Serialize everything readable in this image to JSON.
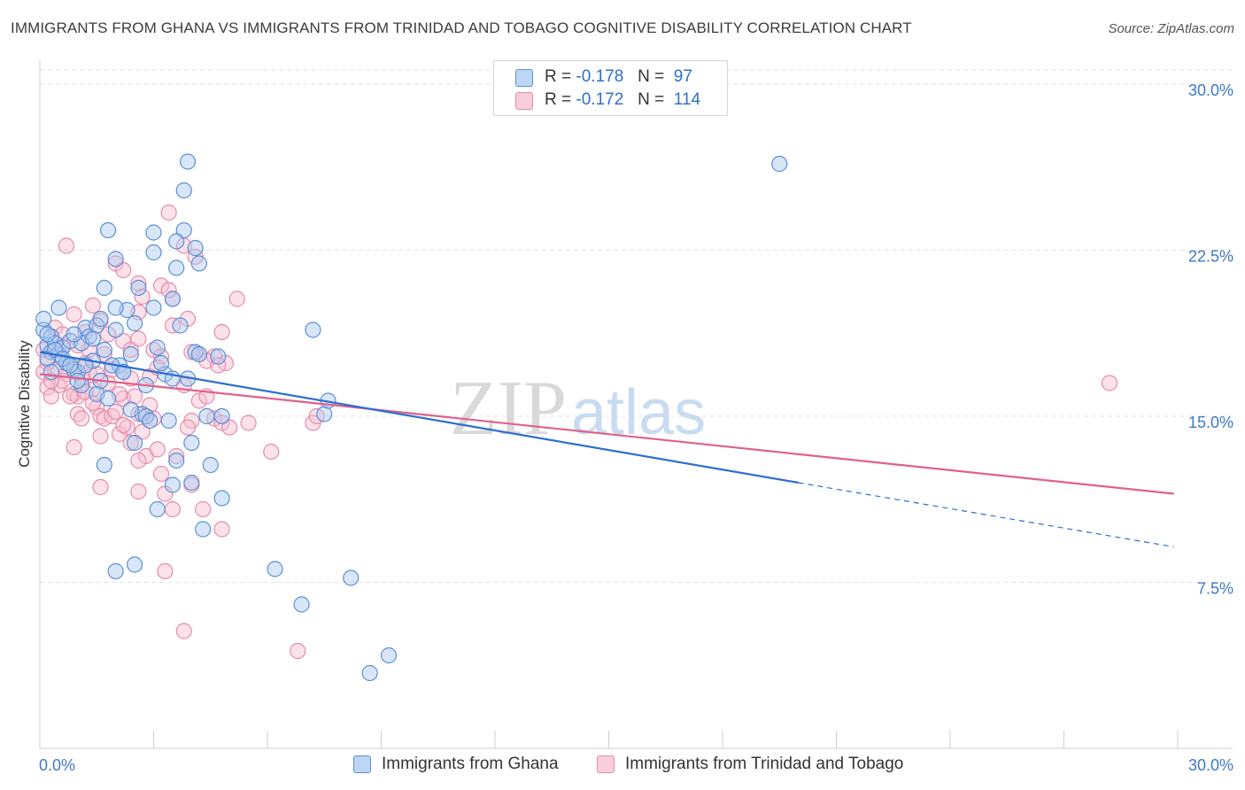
{
  "title": "IMMIGRANTS FROM GHANA VS IMMIGRANTS FROM TRINIDAD AND TOBAGO COGNITIVE DISABILITY CORRELATION CHART",
  "source": "Source: ZipAtlas.com",
  "watermark": {
    "zip": "ZIP",
    "atlas": "atlas"
  },
  "colors": {
    "blue_fill": "#a8c8ef",
    "blue_stroke": "#5b8fd6",
    "blue_line": "#2b6fcf",
    "pink_fill": "#f7bfd0",
    "pink_stroke": "#e88aa8",
    "pink_line": "#e0608c",
    "axis_text": "#3d78c9",
    "grid": "#e3e3e3"
  },
  "legend": {
    "series": [
      {
        "r_label": "R =",
        "r_value": "-0.178",
        "n_label": "N =",
        "n_value": "97"
      },
      {
        "r_label": "R =",
        "r_value": "-0.172",
        "n_label": "N =",
        "n_value": "114"
      }
    ]
  },
  "bottom_legend": [
    {
      "label": "Immigrants from Ghana"
    },
    {
      "label": "Immigrants from Trinidad and Tobago"
    }
  ],
  "chart_data": {
    "type": "scatter",
    "title": "IMMIGRANTS FROM GHANA VS IMMIGRANTS FROM TRINIDAD AND TOBAGO COGNITIVE DISABILITY CORRELATION CHART",
    "xlabel": "",
    "ylabel": "Cognitive Disability",
    "xlim": [
      0,
      30
    ],
    "ylim": [
      0,
      30.8
    ],
    "x_tick_labels": [
      "0.0%",
      "30.0%"
    ],
    "y_ticks": [
      7.5,
      15.0,
      22.5,
      30.0
    ],
    "y_tick_labels": [
      "7.5%",
      "15.0%",
      "22.5%",
      "30.0%"
    ],
    "grid": true,
    "series": [
      {
        "name": "Immigrants from Ghana",
        "r": -0.178,
        "n": 97,
        "trend": {
          "x0": 0.0,
          "y0": 17.9,
          "x1_solid": 20.0,
          "y1_solid": 12.0,
          "x1_dashed": 29.9,
          "y1_dashed": 9.1
        },
        "points": [
          [
            0.1,
            18.9
          ],
          [
            0.2,
            18.2
          ],
          [
            0.3,
            18.6
          ],
          [
            0.3,
            17.9
          ],
          [
            0.4,
            18.3
          ],
          [
            0.5,
            17.8
          ],
          [
            0.6,
            18.1
          ],
          [
            0.7,
            17.4
          ],
          [
            0.8,
            18.4
          ],
          [
            0.9,
            17.1
          ],
          [
            1.0,
            17.0
          ],
          [
            1.1,
            16.4
          ],
          [
            1.2,
            19.0
          ],
          [
            1.3,
            18.6
          ],
          [
            1.4,
            17.5
          ],
          [
            1.5,
            19.1
          ],
          [
            1.6,
            19.4
          ],
          [
            1.7,
            18.0
          ],
          [
            1.5,
            16.0
          ],
          [
            1.8,
            15.8
          ],
          [
            2.0,
            18.9
          ],
          [
            2.1,
            17.3
          ],
          [
            2.2,
            17.0
          ],
          [
            2.3,
            19.8
          ],
          [
            2.4,
            17.8
          ],
          [
            2.5,
            19.2
          ],
          [
            2.7,
            15.1
          ],
          [
            2.8,
            15.0
          ],
          [
            2.9,
            14.8
          ],
          [
            3.0,
            19.9
          ],
          [
            3.1,
            18.1
          ],
          [
            3.3,
            16.9
          ],
          [
            3.5,
            16.7
          ],
          [
            3.7,
            19.1
          ],
          [
            3.9,
            16.7
          ],
          [
            4.1,
            17.9
          ],
          [
            4.2,
            17.8
          ],
          [
            4.4,
            15.0
          ],
          [
            4.7,
            17.7
          ],
          [
            0.5,
            19.9
          ],
          [
            0.7,
            17.4
          ],
          [
            1.1,
            18.3
          ],
          [
            1.9,
            17.3
          ],
          [
            2.4,
            15.3
          ],
          [
            3.4,
            14.8
          ],
          [
            1.8,
            23.4
          ],
          [
            2.0,
            22.1
          ],
          [
            3.0,
            23.3
          ],
          [
            3.0,
            22.4
          ],
          [
            3.8,
            23.4
          ],
          [
            3.6,
            22.9
          ],
          [
            3.6,
            21.7
          ],
          [
            4.1,
            22.6
          ],
          [
            4.2,
            21.9
          ],
          [
            3.8,
            25.2
          ],
          [
            3.9,
            26.5
          ],
          [
            1.7,
            20.8
          ],
          [
            2.6,
            20.8
          ],
          [
            2.0,
            19.9
          ],
          [
            3.5,
            20.3
          ],
          [
            1.7,
            12.8
          ],
          [
            2.5,
            13.8
          ],
          [
            3.1,
            10.8
          ],
          [
            3.5,
            11.9
          ],
          [
            3.6,
            13.0
          ],
          [
            4.0,
            12.0
          ],
          [
            4.0,
            13.8
          ],
          [
            4.5,
            12.8
          ],
          [
            4.8,
            11.3
          ],
          [
            4.3,
            9.9
          ],
          [
            4.8,
            15.0
          ],
          [
            7.5,
            15.1
          ],
          [
            7.6,
            15.7
          ],
          [
            7.2,
            18.9
          ],
          [
            2.5,
            8.3
          ],
          [
            2.0,
            8.0
          ],
          [
            6.2,
            8.1
          ],
          [
            8.2,
            7.7
          ],
          [
            6.9,
            6.5
          ],
          [
            9.2,
            4.2
          ],
          [
            8.7,
            3.4
          ],
          [
            19.5,
            26.4
          ],
          [
            0.1,
            19.4
          ],
          [
            0.2,
            18.7
          ],
          [
            0.2,
            17.6
          ],
          [
            0.4,
            18.0
          ],
          [
            0.6,
            17.6
          ],
          [
            0.8,
            17.3
          ],
          [
            1.0,
            16.6
          ],
          [
            1.2,
            17.3
          ],
          [
            1.4,
            18.5
          ],
          [
            1.6,
            16.6
          ],
          [
            0.3,
            17.0
          ],
          [
            0.9,
            18.7
          ],
          [
            2.2,
            17.0
          ],
          [
            2.8,
            16.4
          ],
          [
            3.2,
            17.4
          ]
        ]
      },
      {
        "name": "Immigrants from Trinidad and Tobago",
        "r": -0.172,
        "n": 114,
        "trend": {
          "x0": 0.0,
          "y0": 16.9,
          "x1": 29.9,
          "y1": 11.5
        },
        "points": [
          [
            0.1,
            18.0
          ],
          [
            0.2,
            17.4
          ],
          [
            0.3,
            17.9
          ],
          [
            0.4,
            17.1
          ],
          [
            0.5,
            16.4
          ],
          [
            0.5,
            17.8
          ],
          [
            0.6,
            18.2
          ],
          [
            0.7,
            16.9
          ],
          [
            0.8,
            17.3
          ],
          [
            0.9,
            16.0
          ],
          [
            1.0,
            15.9
          ],
          [
            1.1,
            16.7
          ],
          [
            1.2,
            17.4
          ],
          [
            1.3,
            18.0
          ],
          [
            1.4,
            16.2
          ],
          [
            1.5,
            15.4
          ],
          [
            1.6,
            15.0
          ],
          [
            1.7,
            14.9
          ],
          [
            1.8,
            16.5
          ],
          [
            1.9,
            15.0
          ],
          [
            2.0,
            15.2
          ],
          [
            2.1,
            14.2
          ],
          [
            2.2,
            15.8
          ],
          [
            2.3,
            14.5
          ],
          [
            2.4,
            16.7
          ],
          [
            2.5,
            15.9
          ],
          [
            2.6,
            15.1
          ],
          [
            2.7,
            14.3
          ],
          [
            2.8,
            13.2
          ],
          [
            2.9,
            15.5
          ],
          [
            3.0,
            14.9
          ],
          [
            3.1,
            13.5
          ],
          [
            3.2,
            12.4
          ],
          [
            3.3,
            11.5
          ],
          [
            3.5,
            10.8
          ],
          [
            3.6,
            13.2
          ],
          [
            3.8,
            16.4
          ],
          [
            4.0,
            14.8
          ],
          [
            4.2,
            15.7
          ],
          [
            4.4,
            15.9
          ],
          [
            4.6,
            14.9
          ],
          [
            4.8,
            14.7
          ],
          [
            5.0,
            14.5
          ],
          [
            5.5,
            14.7
          ],
          [
            6.1,
            13.4
          ],
          [
            7.2,
            14.7
          ],
          [
            7.3,
            15.0
          ],
          [
            4.6,
            17.7
          ],
          [
            4.9,
            17.4
          ],
          [
            4.2,
            17.8
          ],
          [
            4.4,
            17.5
          ],
          [
            4.7,
            17.3
          ],
          [
            4.8,
            18.8
          ],
          [
            4.0,
            17.9
          ],
          [
            3.2,
            20.9
          ],
          [
            3.5,
            20.3
          ],
          [
            3.4,
            20.7
          ],
          [
            2.6,
            19.7
          ],
          [
            2.6,
            21.0
          ],
          [
            2.7,
            20.4
          ],
          [
            1.4,
            20.0
          ],
          [
            1.6,
            19.3
          ],
          [
            2.0,
            21.9
          ],
          [
            2.2,
            21.6
          ],
          [
            3.4,
            24.2
          ],
          [
            3.8,
            22.7
          ],
          [
            4.1,
            22.2
          ],
          [
            0.7,
            22.7
          ],
          [
            0.9,
            19.6
          ],
          [
            1.8,
            18.7
          ],
          [
            2.2,
            18.4
          ],
          [
            2.4,
            18.0
          ],
          [
            2.6,
            18.5
          ],
          [
            3.0,
            18.0
          ],
          [
            3.2,
            17.7
          ],
          [
            3.5,
            19.1
          ],
          [
            3.9,
            19.4
          ],
          [
            5.2,
            20.3
          ],
          [
            1.6,
            11.8
          ],
          [
            2.6,
            11.6
          ],
          [
            2.6,
            13.0
          ],
          [
            3.9,
            14.5
          ],
          [
            4.0,
            11.9
          ],
          [
            4.3,
            10.8
          ],
          [
            4.8,
            9.9
          ],
          [
            3.3,
            8.0
          ],
          [
            3.8,
            5.3
          ],
          [
            6.8,
            4.4
          ],
          [
            28.2,
            16.5
          ],
          [
            0.2,
            16.3
          ],
          [
            0.3,
            15.9
          ],
          [
            0.6,
            16.6
          ],
          [
            0.8,
            15.9
          ],
          [
            1.0,
            15.1
          ],
          [
            1.2,
            16.1
          ],
          [
            1.3,
            17.0
          ],
          [
            1.5,
            16.9
          ],
          [
            1.7,
            17.8
          ],
          [
            1.9,
            17.1
          ],
          [
            2.1,
            16.0
          ],
          [
            0.9,
            13.6
          ],
          [
            1.1,
            14.9
          ],
          [
            1.6,
            14.1
          ],
          [
            2.4,
            13.8
          ],
          [
            0.4,
            19.0
          ],
          [
            0.6,
            18.7
          ],
          [
            1.0,
            18.2
          ],
          [
            1.2,
            18.8
          ],
          [
            2.9,
            16.8
          ],
          [
            3.1,
            17.2
          ],
          [
            0.1,
            17.0
          ],
          [
            0.3,
            16.6
          ],
          [
            1.4,
            15.6
          ],
          [
            2.2,
            14.6
          ]
        ]
      }
    ]
  }
}
